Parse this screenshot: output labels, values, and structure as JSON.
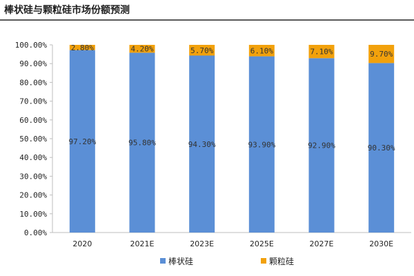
{
  "chart_data": {
    "type": "bar",
    "stacked": true,
    "title": "棒状硅与颗粒硅市场份额预测",
    "categories": [
      "2020",
      "2021E",
      "2023E",
      "2025E",
      "2027E",
      "2030E"
    ],
    "series": [
      {
        "name": "棒状硅",
        "values": [
          97.2,
          95.8,
          94.3,
          93.9,
          92.9,
          90.3
        ],
        "labels": [
          "97.20%",
          "95.80%",
          "94.30%",
          "93.90%",
          "92.90%",
          "90.30%"
        ],
        "color": "#5b8fd6"
      },
      {
        "name": "颗粒硅",
        "values": [
          2.8,
          4.2,
          5.7,
          6.1,
          7.1,
          9.7
        ],
        "labels": [
          "2.80%",
          "4.20%",
          "5.70%",
          "6.10%",
          "7.10%",
          "9.70%"
        ],
        "color": "#f2a10c"
      }
    ],
    "ylim": [
      0,
      100
    ],
    "yticks": [
      "0.00%",
      "10.00%",
      "20.00%",
      "30.00%",
      "40.00%",
      "50.00%",
      "60.00%",
      "70.00%",
      "80.00%",
      "90.00%",
      "100.00%"
    ],
    "grid": false,
    "legend_position": "bottom"
  }
}
